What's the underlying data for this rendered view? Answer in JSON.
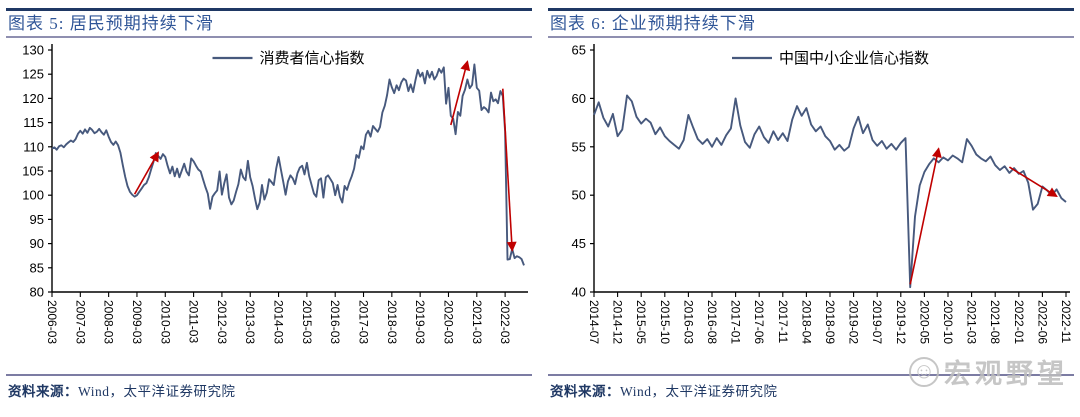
{
  "page": {
    "background": "#ffffff"
  },
  "colors": {
    "title_blue": "#2F5597",
    "rule_dark_navy": "#1F3864",
    "rule_light_purple": "#8F8FB0",
    "series_line": "#47597D",
    "arrow_red": "#C00000",
    "axis_black": "#000000",
    "watermark_gray": "#BDBDBD",
    "source_navy": "#1F3864"
  },
  "panels": [
    {
      "title": "图表 5: 居民预期持续下滑",
      "source_prefix": "资料来源：",
      "source_text": "Wind，太平洋证券研究院"
    },
    {
      "title": "图表 6: 企业预期持续下滑",
      "source_prefix": "资料来源：",
      "source_text": "Wind，太平洋证券研究院"
    }
  ],
  "watermark": {
    "icon": "☺",
    "text": "宏观野望"
  },
  "chart_data": [
    {
      "type": "line",
      "title": "图表 5: 居民预期持续下滑",
      "legend": "消费者信心指数",
      "xlabel": "",
      "ylabel": "",
      "ylim": [
        80,
        130
      ],
      "ytick_step": 5,
      "grid": false,
      "legend_position": "top-center",
      "annotation_color": "#C00000",
      "x_tick_labels": [
        "2006-03",
        "2007-03",
        "2008-03",
        "2009-03",
        "2010-03",
        "2011-03",
        "2012-03",
        "2013-03",
        "2014-03",
        "2015-03",
        "2016-03",
        "2017-03",
        "2018-03",
        "2019-03",
        "2020-03",
        "2021-03",
        "2022-03"
      ],
      "series": [
        {
          "name": "消费者信心指数",
          "color": "#47597D",
          "start": "2006-03",
          "end": "2022-11",
          "frequency": "monthly",
          "values": [
            109.6,
            109.9,
            109.4,
            110.1,
            110.3,
            109.9,
            110.5,
            110.9,
            111.3,
            111.0,
            111.6,
            112.7,
            113.3,
            112.7,
            113.6,
            112.9,
            113.9,
            113.5,
            112.8,
            113.1,
            113.7,
            113.0,
            112.5,
            113.4,
            112.1,
            111.0,
            110.4,
            111.1,
            110.3,
            108.8,
            106.2,
            103.8,
            101.9,
            100.7,
            100.1,
            99.7,
            100.0,
            100.7,
            101.4,
            102.1,
            102.5,
            103.7,
            105.3,
            106.9,
            108.7,
            108.1,
            107.5,
            108.5,
            107.9,
            106.1,
            104.5,
            105.9,
            103.9,
            105.5,
            103.7,
            105.1,
            106.5,
            104.9,
            104.1,
            107.6,
            107.0,
            106.1,
            105.3,
            104.9,
            103.3,
            101.7,
            100.3,
            97.2,
            99.7,
            100.4,
            101.0,
            104.9,
            100.1,
            102.5,
            104.3,
            99.5,
            98.1,
            98.9,
            100.7,
            102.3,
            105.3,
            103.7,
            103.1,
            107.1,
            103.7,
            101.9,
            99.3,
            97.1,
            98.5,
            102.1,
            99.1,
            100.5,
            103.3,
            102.7,
            102.1,
            105.5,
            107.9,
            105.3,
            102.7,
            100.1,
            102.9,
            104.1,
            103.5,
            102.3,
            104.5,
            105.7,
            106.1,
            104.3,
            106.7,
            103.9,
            102.1,
            100.3,
            99.7,
            103.1,
            103.5,
            99.5,
            103.7,
            104.1,
            103.3,
            102.5,
            100.0,
            102.1,
            99.7,
            98.5,
            101.9,
            101.1,
            102.7,
            103.9,
            105.5,
            108.3,
            107.7,
            110.1,
            109.5,
            112.5,
            113.3,
            112.1,
            114.3,
            113.7,
            113.1,
            114.1,
            117.1,
            118.5,
            120.7,
            123.9,
            122.3,
            121.1,
            122.7,
            121.7,
            123.3,
            124.1,
            123.7,
            121.5,
            122.9,
            121.3,
            123.7,
            125.9,
            124.5,
            125.3,
            123.1,
            125.7,
            124.3,
            125.5,
            123.9,
            124.7,
            126.1,
            125.3,
            126.4,
            118.9,
            122.2,
            116.4,
            115.8,
            112.6,
            117.2,
            116.4,
            120.5,
            121.8,
            123.9,
            122.1,
            122.8,
            127.0,
            122.2,
            121.6,
            117.6,
            118.2,
            117.8,
            117.1,
            121.2,
            119.4,
            119.8,
            119.0,
            121.5,
            120.5,
            113.2,
            86.7,
            86.8,
            88.9,
            87.0,
            87.4,
            87.2,
            86.8,
            85.5
          ]
        }
      ],
      "annotations": [
        {
          "type": "arrow",
          "from": {
            "x": "2009-02",
            "y": 100.2
          },
          "to": {
            "x": "2009-12",
            "y": 108.8
          }
        },
        {
          "type": "arrow",
          "from": {
            "x": "2020-04",
            "y": 114.5
          },
          "to": {
            "x": "2020-11",
            "y": 127.6
          }
        },
        {
          "type": "arrow",
          "from": {
            "x": "2022-02",
            "y": 122.0
          },
          "to": {
            "x": "2022-06",
            "y": 88.6
          }
        }
      ],
      "source": "资料来源：Wind，太平洋证券研究院"
    },
    {
      "type": "line",
      "title": "图表 6: 企业预期持续下滑",
      "legend": "中国中小企业信心指数",
      "xlabel": "",
      "ylabel": "",
      "ylim": [
        40,
        65
      ],
      "ytick_step": 5,
      "grid": false,
      "legend_position": "top-center",
      "annotation_color": "#C00000",
      "x_tick_labels": [
        "2014-07",
        "2014-12",
        "2015-05",
        "2015-10",
        "2016-03",
        "2016-08",
        "2017-01",
        "2017-06",
        "2017-11",
        "2018-04",
        "2018-09",
        "2019-02",
        "2019-07",
        "2019-12",
        "2020-05",
        "2020-10",
        "2021-03",
        "2021-08",
        "2022-01",
        "2022-06",
        "2022-11"
      ],
      "series": [
        {
          "name": "中国中小企业信心指数",
          "color": "#47597D",
          "start": "2014-07",
          "end": "2022-11",
          "frequency": "monthly",
          "values": [
            58.3,
            59.6,
            58.0,
            57.1,
            58.4,
            56.1,
            56.8,
            60.3,
            59.7,
            58.1,
            57.4,
            57.9,
            57.5,
            56.3,
            57.0,
            56.1,
            55.6,
            55.2,
            54.8,
            55.7,
            58.3,
            57.0,
            55.8,
            55.3,
            55.8,
            55.0,
            55.9,
            55.2,
            56.2,
            56.9,
            60.0,
            57.2,
            55.5,
            54.9,
            56.3,
            57.1,
            56.0,
            55.4,
            56.6,
            55.7,
            56.4,
            55.6,
            57.8,
            59.2,
            58.2,
            59.0,
            57.3,
            56.6,
            57.1,
            56.1,
            55.6,
            54.7,
            55.2,
            54.6,
            55.0,
            56.9,
            58.1,
            56.4,
            57.3,
            55.7,
            55.1,
            55.6,
            54.8,
            55.3,
            54.7,
            55.4,
            55.9,
            40.5,
            47.8,
            51.0,
            52.4,
            53.2,
            53.8,
            53.4,
            53.9,
            53.6,
            54.1,
            53.8,
            53.4,
            55.8,
            55.1,
            54.2,
            53.8,
            53.5,
            54.0,
            53.1,
            52.6,
            53.0,
            52.3,
            52.8,
            52.2,
            52.5,
            51.3,
            48.5,
            49.1,
            50.9,
            50.5,
            50.0,
            50.6,
            49.7,
            49.3
          ]
        }
      ],
      "annotations": [
        {
          "type": "arrow",
          "from": {
            "x": "2020-02",
            "y": 40.8
          },
          "to": {
            "x": "2020-08",
            "y": 54.8
          }
        },
        {
          "type": "arrow",
          "from": {
            "x": "2021-11",
            "y": 52.9
          },
          "to": {
            "x": "2022-09",
            "y": 49.9
          }
        }
      ],
      "source": "资料来源：Wind，太平洋证券研究院"
    }
  ]
}
